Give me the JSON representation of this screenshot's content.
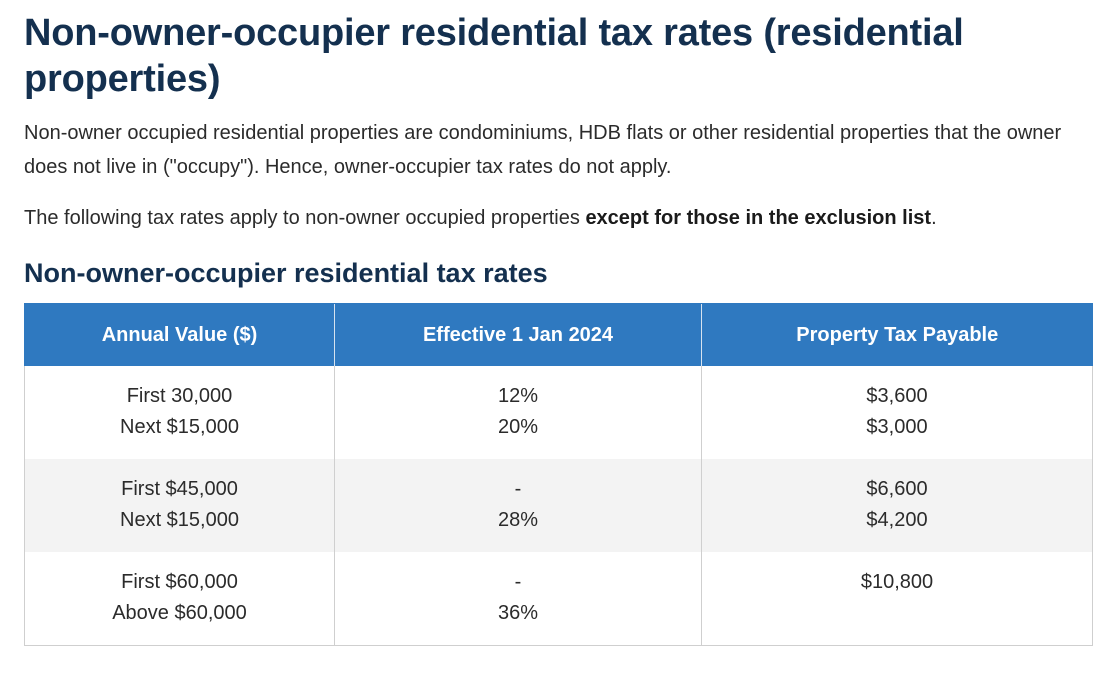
{
  "page": {
    "title": "Non-owner-occupier residential tax rates (residential properties)",
    "intro": "Non-owner occupied residential properties are condominiums, HDB flats or other residential properties that the owner does not live in (\"occupy\"). Hence, owner-occupier tax rates do not apply.",
    "rates_note_prefix": "The following tax rates apply to non-owner occupied properties ",
    "rates_note_bold": "except for those in the exclusion list",
    "rates_note_suffix": "."
  },
  "section": {
    "title": "Non-owner-occupier residential tax rates"
  },
  "table": {
    "headers": [
      "Annual Value ($)",
      "Effective 1 Jan 2024",
      "Property Tax Payable"
    ],
    "rows": [
      {
        "annual_value": [
          "First 30,000",
          "Next $15,000"
        ],
        "effective": [
          "12%",
          "20%"
        ],
        "payable": [
          "$3,600",
          "$3,000"
        ]
      },
      {
        "annual_value": [
          "First $45,000",
          "Next $15,000"
        ],
        "effective": [
          "-",
          "28%"
        ],
        "payable": [
          "$6,600",
          "$4,200"
        ]
      },
      {
        "annual_value": [
          "First $60,000",
          "Above $60,000"
        ],
        "effective": [
          "-",
          "36%"
        ],
        "payable": [
          "$10,800",
          ""
        ]
      }
    ]
  }
}
